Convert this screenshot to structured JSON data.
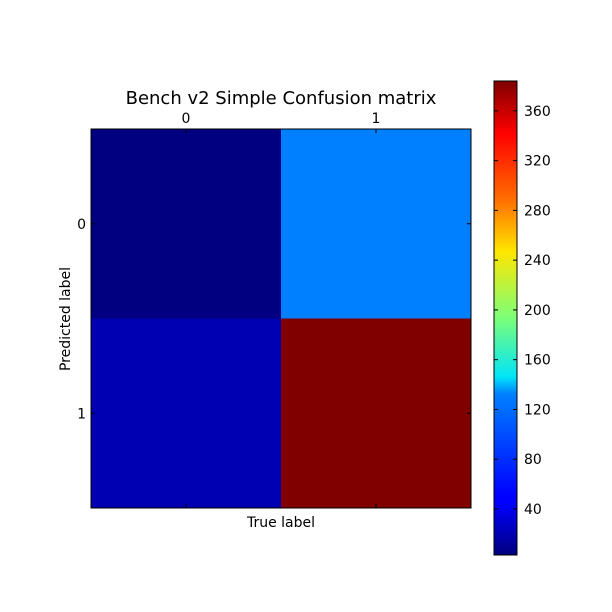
{
  "chart_data": {
    "type": "heatmap",
    "title": "Bench v2 Simple Confusion matrix",
    "xlabel": "True label",
    "ylabel": "Predicted label",
    "x_categories": [
      "0",
      "1"
    ],
    "y_categories": [
      "0",
      "1"
    ],
    "matrix": [
      [
        3,
        98
      ],
      [
        22,
        384
      ]
    ],
    "colormap": "jet",
    "colorbar": {
      "min": 3,
      "max": 384,
      "ticks": [
        40,
        80,
        120,
        160,
        200,
        240,
        280,
        320,
        360
      ],
      "tick_labels": [
        "40",
        "80",
        "120",
        "160",
        "200",
        "240",
        "280",
        "320",
        "360"
      ]
    },
    "x_tick_position": "top",
    "grid": false
  }
}
